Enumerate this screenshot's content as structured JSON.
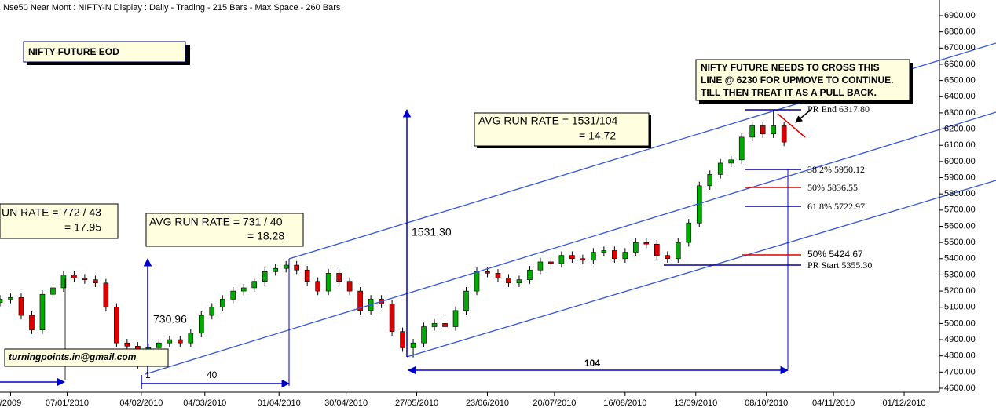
{
  "chart_data": {
    "type": "candlestick",
    "title": "NIFTY FUTURE EOD",
    "header": "Nse50 Near Mont : NIFTY-N Display :  Daily  - Trading - 215 Bars -  Max Space - 260 Bars",
    "x": [
      0,
      3,
      6,
      9,
      12,
      15,
      18,
      21,
      24,
      27,
      30,
      33,
      36,
      39,
      42,
      45,
      48,
      51,
      54,
      57,
      60,
      63,
      66,
      69,
      72,
      75,
      78,
      81,
      84,
      87,
      90,
      93,
      96,
      99,
      102,
      105,
      108,
      111,
      114,
      117,
      120,
      123,
      126,
      129,
      132,
      135,
      138,
      141,
      144,
      147,
      150,
      153,
      156,
      159,
      162,
      165,
      168,
      171,
      174,
      177,
      180,
      183,
      186,
      189,
      192,
      195,
      198,
      201,
      204,
      207,
      210,
      213,
      216,
      219,
      222
    ],
    "open": [
      5130,
      5150,
      5160,
      5050,
      4960,
      5180,
      5220,
      5300,
      5280,
      5270,
      5250,
      5100,
      4880,
      4860,
      4800,
      4850,
      4880,
      4900,
      4880,
      4940,
      5050,
      5100,
      5150,
      5200,
      5220,
      5260,
      5320,
      5340,
      5360,
      5330,
      5260,
      5200,
      5310,
      5260,
      5200,
      5080,
      5150,
      5120,
      4950,
      4850,
      4880,
      4980,
      5000,
      4980,
      5080,
      5200,
      5320,
      5310,
      5280,
      5250,
      5270,
      5330,
      5380,
      5370,
      5420,
      5400,
      5390,
      5440,
      5450,
      5400,
      5440,
      5500,
      5490,
      5420,
      5400,
      5500,
      5620,
      5850,
      5920,
      5990,
      6010,
      6150,
      6220,
      6170,
      6220
    ],
    "high": [
      5175,
      5185,
      5185,
      5075,
      5205,
      5245,
      5325,
      5325,
      5305,
      5295,
      5275,
      5125,
      4905,
      4885,
      4875,
      4905,
      4925,
      4925,
      4965,
      5075,
      5125,
      5175,
      5225,
      5245,
      5285,
      5345,
      5365,
      5385,
      5385,
      5355,
      5285,
      5335,
      5335,
      5285,
      5225,
      5175,
      5175,
      5145,
      4975,
      4905,
      5005,
      5025,
      5025,
      5105,
      5225,
      5345,
      5345,
      5335,
      5305,
      5295,
      5355,
      5405,
      5405,
      5445,
      5445,
      5425,
      5465,
      5475,
      5475,
      5465,
      5525,
      5525,
      5515,
      5445,
      5525,
      5645,
      5875,
      5945,
      6015,
      6035,
      6175,
      6245,
      6245,
      6318,
      6245
    ],
    "low": [
      5105,
      5125,
      5025,
      4935,
      4935,
      5155,
      5195,
      5255,
      5245,
      5225,
      5075,
      4855,
      4835,
      4720,
      4775,
      4825,
      4855,
      4855,
      4855,
      4915,
      5025,
      5075,
      5125,
      5175,
      5195,
      5235,
      5295,
      5315,
      5305,
      5235,
      5175,
      5175,
      5235,
      5175,
      5055,
      5055,
      5095,
      4925,
      4825,
      4790,
      4855,
      4955,
      4955,
      4955,
      5055,
      5175,
      5285,
      5255,
      5225,
      5225,
      5245,
      5305,
      5345,
      5345,
      5375,
      5365,
      5365,
      5415,
      5375,
      5375,
      5415,
      5465,
      5395,
      5375,
      5375,
      5475,
      5595,
      5825,
      5895,
      5965,
      5985,
      6125,
      6145,
      6145,
      6095
    ],
    "close": [
      5150,
      5160,
      5050,
      4960,
      5180,
      5220,
      5300,
      5280,
      5270,
      5250,
      5100,
      4880,
      4860,
      4800,
      4850,
      4880,
      4900,
      4880,
      4940,
      5050,
      5100,
      5150,
      5200,
      5220,
      5260,
      5320,
      5340,
      5360,
      5330,
      5260,
      5200,
      5310,
      5260,
      5200,
      5080,
      5150,
      5120,
      4950,
      4850,
      4880,
      4980,
      5000,
      4980,
      5080,
      5200,
      5320,
      5310,
      5280,
      5250,
      5270,
      5330,
      5380,
      5370,
      5420,
      5400,
      5390,
      5440,
      5450,
      5400,
      5440,
      5500,
      5490,
      5420,
      5400,
      5500,
      5620,
      5850,
      5920,
      5990,
      6010,
      6150,
      6220,
      6170,
      6220,
      6120
    ],
    "up_color": "#00aa00",
    "down_color": "#dd0000",
    "xlim": [
      0,
      266
    ],
    "xticks": [
      {
        "value": 3,
        "label": "/2009"
      },
      {
        "value": 19,
        "label": "07/01/2010"
      },
      {
        "value": 40,
        "label": "04/02/2010"
      },
      {
        "value": 58,
        "label": "04/03/2010"
      },
      {
        "value": 79,
        "label": "01/04/2010"
      },
      {
        "value": 98,
        "label": "30/04/2010"
      },
      {
        "value": 118,
        "label": "27/05/2010"
      },
      {
        "value": 138,
        "label": "23/06/2010"
      },
      {
        "value": 157,
        "label": "20/07/2010"
      },
      {
        "value": 177,
        "label": "16/08/2010"
      },
      {
        "value": 197,
        "label": "13/09/2010"
      },
      {
        "value": 217,
        "label": "08/10/2010"
      },
      {
        "value": 236,
        "label": "04/11/2010"
      },
      {
        "value": 256,
        "label": "01/12/2010"
      }
    ],
    "ylim": [
      4600,
      6900
    ],
    "yticks": [
      {
        "value": 4600,
        "label": "4600.00"
      },
      {
        "value": 4700,
        "label": "4700.00"
      },
      {
        "value": 4800,
        "label": "4800.00"
      },
      {
        "value": 4900,
        "label": "4900.00"
      },
      {
        "value": 5000,
        "label": "5000.00"
      },
      {
        "value": 5100,
        "label": "5100.00"
      },
      {
        "value": 5200,
        "label": "5200.00"
      },
      {
        "value": 5300,
        "label": "5300.00"
      },
      {
        "value": 5400,
        "label": "5400.00"
      },
      {
        "value": 5500,
        "label": "5500.00"
      },
      {
        "value": 5600,
        "label": "5600.00"
      },
      {
        "value": 5700,
        "label": "5700.00"
      },
      {
        "value": 5800,
        "label": "5800.00"
      },
      {
        "value": 5900,
        "label": "5900.00"
      },
      {
        "value": 6000,
        "label": "6000.00"
      },
      {
        "value": 6100,
        "label": "6100.00"
      },
      {
        "value": 6200,
        "label": "6200.00"
      },
      {
        "value": 6300,
        "label": "6300.00"
      },
      {
        "value": 6400,
        "label": "6400.00"
      },
      {
        "value": 6500,
        "label": "6500.00"
      },
      {
        "value": 6600,
        "label": "6600.00"
      },
      {
        "value": 6700,
        "label": "6700.00"
      },
      {
        "value": 6800,
        "label": "6800.00"
      },
      {
        "value": 6900,
        "label": "6900.00"
      }
    ],
    "annotations": {
      "note": [
        "NIFTY FUTURE NEEDS TO CROSS THIS",
        "LINE @ 6230 FOR UPMOVE TO CONTINUE.",
        "TILL THEN TREAT IT AS A PULL BACK."
      ],
      "run_rate_1": [
        "AVG RUN RATE  = 1531/104",
        "= 14.72"
      ],
      "run_rate_2": [
        "UN RATE  =  772 / 43",
        "=  17.95"
      ],
      "run_rate_3": [
        "AVG RUN RATE  = 731 / 40",
        "= 18.28"
      ],
      "rise_1": "730.96",
      "rise_2": "1531.30",
      "bars_1": "40",
      "bars_2": "104",
      "marker": "1",
      "pr_end": "PR End 6317.80",
      "fib_382": "38.2% 5950.12",
      "fib_50": "50% 5836.55",
      "fib_618": "61.8% 5722.97",
      "fib_50b": "50% 5424.67",
      "pr_start": "PR Start 5355.30",
      "email": "turningpoints.in@gmail.com"
    }
  }
}
